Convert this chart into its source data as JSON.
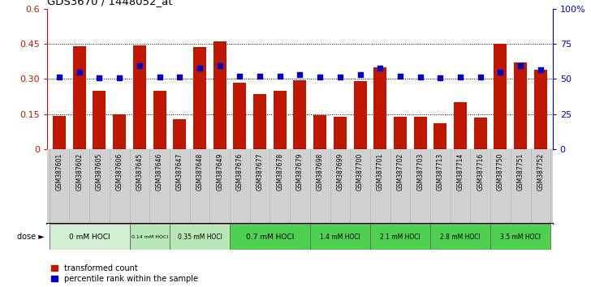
{
  "title": "GDS3670 / 1448052_at",
  "samples": [
    "GSM387601",
    "GSM387602",
    "GSM387605",
    "GSM387606",
    "GSM387645",
    "GSM387646",
    "GSM387647",
    "GSM387648",
    "GSM387649",
    "GSM387676",
    "GSM387677",
    "GSM387678",
    "GSM387679",
    "GSM387698",
    "GSM387699",
    "GSM387700",
    "GSM387701",
    "GSM387702",
    "GSM387703",
    "GSM387713",
    "GSM387714",
    "GSM387716",
    "GSM387750",
    "GSM387751",
    "GSM387752"
  ],
  "bar_values": [
    0.143,
    0.44,
    0.25,
    0.15,
    0.443,
    0.248,
    0.127,
    0.435,
    0.462,
    0.285,
    0.235,
    0.248,
    0.295,
    0.145,
    0.14,
    0.29,
    0.35,
    0.14,
    0.14,
    0.11,
    0.2,
    0.135,
    0.45,
    0.37,
    0.34
  ],
  "percentile_values": [
    51.5,
    55.0,
    50.8,
    50.5,
    59.6,
    51.3,
    51.2,
    57.5,
    59.2,
    51.7,
    52.0,
    51.7,
    53.0,
    51.3,
    51.2,
    53.0,
    57.5,
    51.7,
    51.2,
    50.8,
    51.2,
    51.2,
    55.0,
    59.2,
    56.7
  ],
  "dose_groups": [
    {
      "label": "0 mM HOCl",
      "start": 0,
      "end": 4,
      "color": "#d4f0d4"
    },
    {
      "label": "0.14 mM HOCl",
      "start": 4,
      "end": 6,
      "color": "#b8e8b8"
    },
    {
      "label": "0.35 mM HOCl",
      "start": 6,
      "end": 9,
      "color": "#b8e8b8"
    },
    {
      "label": "0.7 mM HOCl",
      "start": 9,
      "end": 13,
      "color": "#50d050"
    },
    {
      "label": "1.4 mM HOCl",
      "start": 13,
      "end": 16,
      "color": "#50d050"
    },
    {
      "label": "2.1 mM HOCl",
      "start": 16,
      "end": 19,
      "color": "#50d050"
    },
    {
      "label": "2.8 mM HOCl",
      "start": 19,
      "end": 22,
      "color": "#50d050"
    },
    {
      "label": "3.5 mM HOCl",
      "start": 22,
      "end": 25,
      "color": "#50d050"
    }
  ],
  "bar_color": "#c01800",
  "percentile_color": "#0000c8",
  "ylim_left": [
    0,
    0.6
  ],
  "ylim_right": [
    0,
    100
  ],
  "yticks_left": [
    0,
    0.15,
    0.3,
    0.45,
    0.6
  ],
  "yticks_right": [
    0,
    25,
    50,
    75,
    100
  ],
  "ytick_labels_left": [
    "0",
    "0.15",
    "0.30",
    "0.45",
    "0.6"
  ],
  "ytick_labels_right": [
    "0",
    "25",
    "50",
    "75",
    "100%"
  ],
  "background_color": "#ffffff",
  "sample_bg_color": "#d0d0d0",
  "legend_items": [
    "transformed count",
    "percentile rank within the sample"
  ]
}
